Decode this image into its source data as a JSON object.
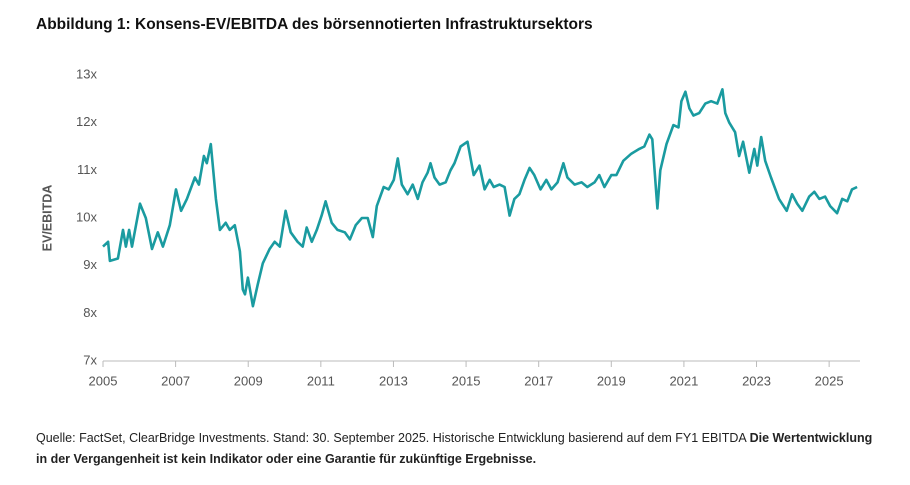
{
  "chart_data": {
    "type": "line",
    "title": "Abbildung 1: Konsens-EV/EBITDA des börsennotierten Infrastruktursektors",
    "y_label": "EV/EBITDA",
    "source": "Quelle: FactSet, ClearBridge Investments. Stand: 30. September 2025. Historische Entwicklung basierend auf dem FY1 EBITDA",
    "disclaimer": "Die Wertentwicklung in der Vergangenheit ist kein Indikator oder eine Garantie für zukünftige Ergebnisse.",
    "xlim": [
      2005,
      2025.85
    ],
    "xticks": [
      2005,
      2007,
      2009,
      2011,
      2013,
      2015,
      2017,
      2019,
      2021,
      2023,
      2025
    ],
    "ylim": [
      7,
      13
    ],
    "yticks": [
      {
        "value": 7,
        "label": "7x"
      },
      {
        "value": 8,
        "label": "8x"
      },
      {
        "value": 9,
        "label": "9x"
      },
      {
        "value": 10,
        "label": "10x"
      },
      {
        "value": 11,
        "label": "11x"
      },
      {
        "value": 12,
        "label": "12x"
      },
      {
        "value": 13,
        "label": "13x"
      }
    ],
    "grid": false,
    "series": [
      {
        "name": "EV/EBITDA",
        "color": "#1a9ba0",
        "x": [
          2005.0,
          2005.14,
          2005.19,
          2005.41,
          2005.55,
          2005.63,
          2005.72,
          2005.8,
          2006.02,
          2006.18,
          2006.35,
          2006.51,
          2006.65,
          2006.84,
          2007.01,
          2007.15,
          2007.31,
          2007.53,
          2007.64,
          2007.78,
          2007.86,
          2007.97,
          2008.11,
          2008.22,
          2008.38,
          2008.49,
          2008.63,
          2008.77,
          2008.85,
          2008.91,
          2008.99,
          2009.13,
          2009.26,
          2009.4,
          2009.59,
          2009.73,
          2009.87,
          2010.03,
          2010.17,
          2010.36,
          2010.5,
          2010.61,
          2010.75,
          2010.89,
          2011.02,
          2011.13,
          2011.3,
          2011.46,
          2011.66,
          2011.8,
          2011.96,
          2012.13,
          2012.29,
          2012.43,
          2012.54,
          2012.73,
          2012.87,
          2013.01,
          2013.12,
          2013.23,
          2013.39,
          2013.53,
          2013.67,
          2013.8,
          2013.94,
          2014.02,
          2014.13,
          2014.27,
          2014.44,
          2014.57,
          2014.68,
          2014.85,
          2015.04,
          2015.21,
          2015.37,
          2015.51,
          2015.65,
          2015.76,
          2015.92,
          2016.06,
          2016.2,
          2016.33,
          2016.47,
          2016.61,
          2016.75,
          2016.88,
          2017.05,
          2017.21,
          2017.35,
          2017.52,
          2017.68,
          2017.79,
          2017.99,
          2018.18,
          2018.34,
          2018.54,
          2018.67,
          2018.81,
          2019.0,
          2019.14,
          2019.33,
          2019.55,
          2019.77,
          2019.91,
          2020.05,
          2020.13,
          2020.27,
          2020.35,
          2020.52,
          2020.71,
          2020.85,
          2020.93,
          2021.04,
          2021.15,
          2021.26,
          2021.42,
          2021.59,
          2021.75,
          2021.92,
          2022.06,
          2022.14,
          2022.25,
          2022.41,
          2022.52,
          2022.63,
          2022.8,
          2022.94,
          2023.02,
          2023.13,
          2023.24,
          2023.4,
          2023.62,
          2023.83,
          2023.98,
          2024.12,
          2024.26,
          2024.45,
          2024.59,
          2024.73,
          2024.89,
          2025.03,
          2025.22,
          2025.36,
          2025.5,
          2025.63,
          2025.77
        ],
        "values": [
          9.4,
          9.5,
          9.1,
          9.15,
          9.75,
          9.4,
          9.75,
          9.4,
          10.3,
          10.0,
          9.35,
          9.7,
          9.4,
          9.85,
          10.6,
          10.15,
          10.4,
          10.85,
          10.7,
          11.3,
          11.15,
          11.55,
          10.4,
          9.75,
          9.9,
          9.75,
          9.85,
          9.3,
          8.5,
          8.4,
          8.75,
          8.15,
          8.6,
          9.05,
          9.35,
          9.5,
          9.4,
          10.15,
          9.7,
          9.5,
          9.4,
          9.8,
          9.5,
          9.75,
          10.05,
          10.35,
          9.9,
          9.75,
          9.7,
          9.55,
          9.85,
          10.0,
          10.0,
          9.6,
          10.25,
          10.65,
          10.6,
          10.8,
          11.25,
          10.7,
          10.5,
          10.7,
          10.4,
          10.75,
          10.95,
          11.15,
          10.85,
          10.7,
          10.75,
          11.0,
          11.15,
          11.5,
          11.6,
          10.9,
          11.1,
          10.6,
          10.8,
          10.65,
          10.7,
          10.65,
          10.05,
          10.4,
          10.5,
          10.8,
          11.05,
          10.9,
          10.6,
          10.8,
          10.6,
          10.75,
          11.15,
          10.85,
          10.7,
          10.75,
          10.65,
          10.75,
          10.9,
          10.65,
          10.9,
          10.9,
          11.2,
          11.35,
          11.45,
          11.5,
          11.75,
          11.65,
          10.2,
          11.0,
          11.55,
          11.95,
          11.9,
          12.45,
          12.65,
          12.3,
          12.15,
          12.2,
          12.4,
          12.45,
          12.4,
          12.7,
          12.2,
          12.0,
          11.8,
          11.3,
          11.6,
          10.95,
          11.45,
          11.1,
          11.7,
          11.2,
          10.85,
          10.4,
          10.15,
          10.5,
          10.3,
          10.15,
          10.45,
          10.55,
          10.4,
          10.45,
          10.25,
          10.1,
          10.4,
          10.35,
          10.6,
          10.65
        ]
      }
    ]
  }
}
